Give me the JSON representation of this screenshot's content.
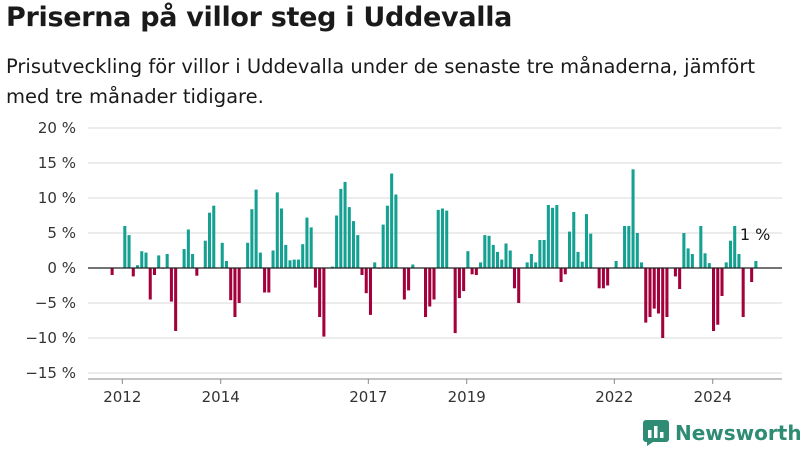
{
  "header": {
    "title": "Priserna på villor steg i Uddevalla",
    "subtitle": "Prisutveckling för villor i Uddevalla under de senaste tre månaderna, jämfört med tre månader tidigare."
  },
  "brand": {
    "name": "Newsworthy",
    "icon": "newsworthy-logo-icon"
  },
  "colors": {
    "positive": "#14a192",
    "negative": "#a3003c",
    "grid": "#d9d9d9",
    "zero": "#222222"
  },
  "chart_data": {
    "type": "bar",
    "title": "Priserna på villor steg i Uddevalla",
    "ylim": [
      -15,
      20
    ],
    "y_ticks": [
      -15,
      -10,
      -5,
      0,
      5,
      10,
      15,
      20
    ],
    "y_tick_labels": [
      "−15 %",
      "−10 %",
      "−5 %",
      "0 %",
      "5 %",
      "10 %",
      "15 %",
      "20 %"
    ],
    "x_tick_labels": [
      "2012",
      "2014",
      "2017",
      "2019",
      "2022",
      "2024"
    ],
    "x_ticks": [
      2012.0,
      2014.0,
      2017.0,
      2019.0,
      2022.0,
      2024.0
    ],
    "x_start": 2011.75,
    "x_end": 2024.92,
    "grid": true,
    "annotation": {
      "text": "1 %",
      "value": 1
    },
    "series": [
      {
        "values": [
          -1,
          0,
          0,
          6,
          4.7,
          -1.2,
          0.4,
          2.4,
          2.2,
          -4.5,
          -1,
          1.8,
          -0.1,
          2,
          -4.8,
          -9,
          0,
          2.7,
          5.5,
          2,
          -1.1,
          0,
          3.9,
          7.9,
          8.9,
          0,
          3.6,
          1,
          -4.6,
          -7,
          -5,
          0,
          3.6,
          8.4,
          11.2,
          2.2,
          -3.5,
          -3.5,
          2.5,
          10.8,
          8.5,
          3.3,
          1.1,
          1.2,
          1.2,
          3.4,
          7.2,
          5.8,
          -2.8,
          -7,
          -9.8,
          0,
          0.2,
          7.5,
          11.3,
          12.3,
          8.7,
          6.7,
          4.7,
          -1,
          -3.6,
          -6.7,
          0.8,
          -0.1,
          6.2,
          8.9,
          13.5,
          10.5,
          0,
          -4.5,
          -3.2,
          0.5,
          0,
          0,
          -7,
          -5.5,
          -4.5,
          8.3,
          8.5,
          8.2,
          0,
          -9.3,
          -4.3,
          -3.3,
          2.4,
          -0.9,
          -1,
          0.8,
          4.7,
          4.6,
          3.3,
          2.3,
          1.2,
          3.5,
          2.5,
          -2.9,
          -5,
          0,
          0.8,
          2,
          0.8,
          4,
          4,
          9,
          8.6,
          9,
          -2,
          -0.9,
          5.2,
          8,
          2.3,
          0.9,
          7.7,
          4.9,
          0,
          -2.9,
          -2.9,
          -2.5,
          0,
          1,
          0,
          6,
          6,
          14.1,
          5,
          0.8,
          -7.8,
          -7,
          -5.8,
          -6.5,
          -10,
          -7,
          0,
          -1.2,
          -3,
          5,
          2.8,
          2,
          0,
          6,
          2.1,
          0.7,
          -9,
          -8.1,
          -4,
          0.8,
          3.9,
          6,
          2,
          -7,
          0,
          -2,
          1
        ]
      }
    ]
  }
}
